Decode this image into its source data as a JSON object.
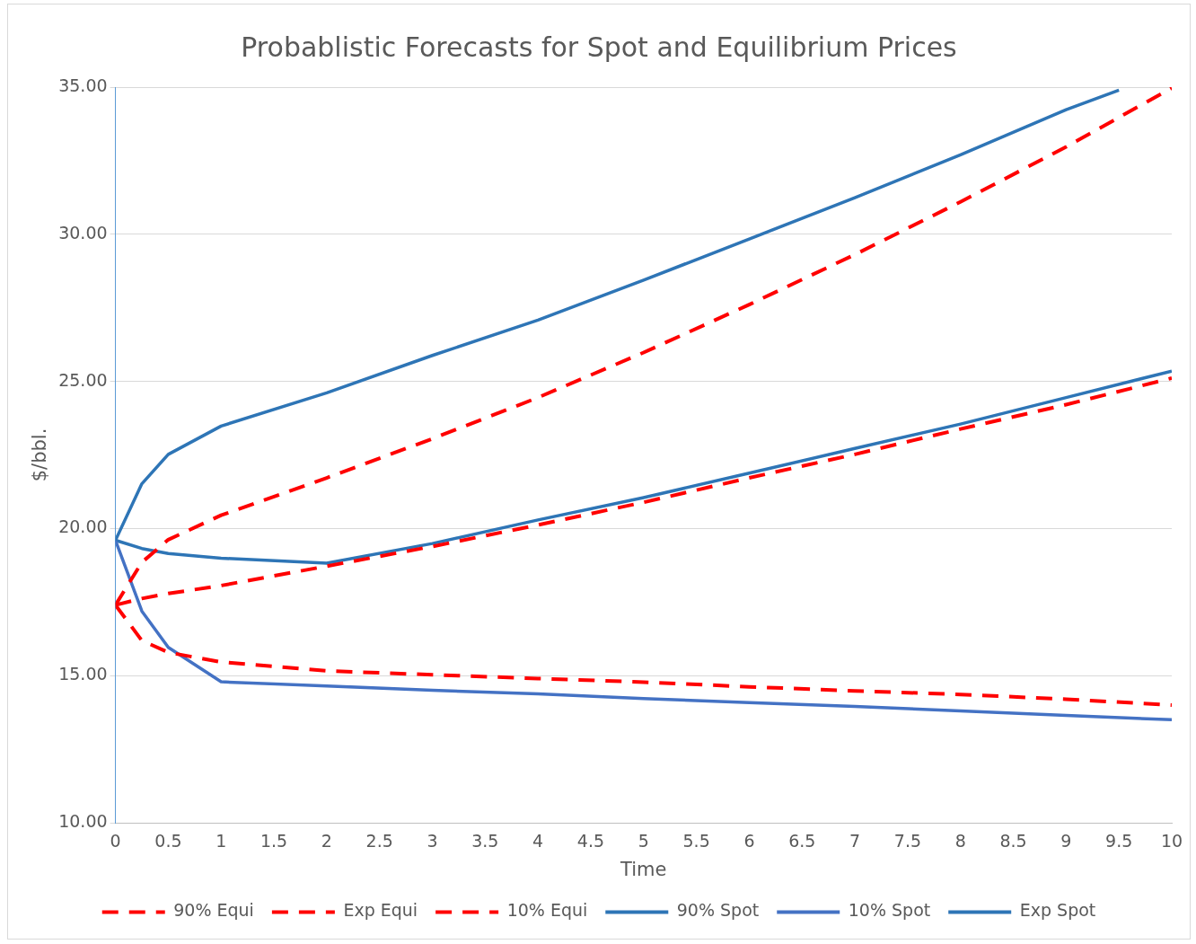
{
  "chart_data": {
    "type": "line",
    "title": "Probablistic Forecasts for Spot and Equilibrium Prices",
    "xlabel": "Time",
    "ylabel": "$/bbl.",
    "x": [
      0,
      0.25,
      0.5,
      1,
      2,
      3,
      4,
      5,
      6,
      7,
      8,
      9,
      10
    ],
    "series": [
      {
        "name": "90% Equi",
        "color": "#ff0000",
        "line_style": "dashed",
        "values": [
          17.4,
          18.85,
          19.62,
          20.45,
          21.72,
          23.05,
          24.45,
          25.98,
          27.61,
          29.31,
          31.1,
          32.97,
          34.97
        ]
      },
      {
        "name": "Exp Equi",
        "color": "#ff0000",
        "line_style": "dashed",
        "values": [
          17.4,
          17.62,
          17.79,
          18.06,
          18.72,
          19.39,
          20.12,
          20.89,
          21.72,
          22.52,
          23.38,
          24.21,
          25.11
        ]
      },
      {
        "name": "10% Equi",
        "color": "#ff0000",
        "line_style": "dashed",
        "values": [
          17.4,
          16.19,
          15.79,
          15.46,
          15.16,
          15.03,
          14.9,
          14.78,
          14.62,
          14.48,
          14.36,
          14.2,
          14.0
        ]
      },
      {
        "name": "90% Spot",
        "color": "#2e75b6",
        "line_style": "solid",
        "x": [
          0,
          0.25,
          0.5,
          1,
          2,
          3,
          4,
          5,
          6,
          7,
          8,
          9,
          9.5
        ],
        "values": [
          19.6,
          21.52,
          22.52,
          23.48,
          24.61,
          25.88,
          27.08,
          28.44,
          29.84,
          31.24,
          32.7,
          34.23,
          34.9
        ]
      },
      {
        "name": "10% Spot",
        "color": "#4472c4",
        "line_style": "solid",
        "values": [
          19.6,
          17.19,
          15.96,
          14.79,
          14.65,
          14.5,
          14.38,
          14.22,
          14.08,
          13.95,
          13.8,
          13.65,
          13.5
        ]
      },
      {
        "name": "Exp Spot",
        "color": "#2e75b6",
        "line_style": "solid",
        "values": [
          19.6,
          19.32,
          19.15,
          18.99,
          18.82,
          19.49,
          20.29,
          21.05,
          21.88,
          22.72,
          23.55,
          24.45,
          25.35
        ]
      }
    ],
    "xlim": [
      0,
      10
    ],
    "xticks": [
      0,
      0.5,
      1,
      1.5,
      2,
      2.5,
      3,
      3.5,
      4,
      4.5,
      5,
      5.5,
      6,
      6.5,
      7,
      7.5,
      8,
      8.5,
      9,
      9.5,
      10
    ],
    "ylim": [
      10,
      35
    ],
    "yticks": [
      {
        "value": 10,
        "label": "10.00"
      },
      {
        "value": 15,
        "label": "15.00"
      },
      {
        "value": 20,
        "label": "20.00"
      },
      {
        "value": 25,
        "label": "25.00"
      },
      {
        "value": 30,
        "label": "30.00"
      },
      {
        "value": 35,
        "label": "35.00"
      }
    ],
    "grid": "y",
    "legend": "bottom",
    "marker": "none"
  }
}
